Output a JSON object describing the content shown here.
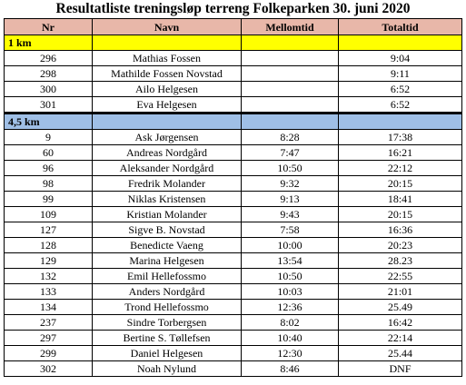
{
  "title": "Resultatliste treningsløp terreng Folkeparken 30. juni 2020",
  "columns": [
    "Nr",
    "Navn",
    "Mellomtid",
    "Totaltid"
  ],
  "sections": [
    {
      "label": "1 km",
      "rows": [
        {
          "nr": "296",
          "navn": "Mathias Fossen",
          "mellomtid": "",
          "totaltid": "9:04"
        },
        {
          "nr": "298",
          "navn": "Mathilde Fossen Novstad",
          "mellomtid": "",
          "totaltid": "9:11"
        },
        {
          "nr": "300",
          "navn": "Ailo Helgesen",
          "mellomtid": "",
          "totaltid": "6:52"
        },
        {
          "nr": "301",
          "navn": "Eva Helgesen",
          "mellomtid": "",
          "totaltid": "6:52"
        }
      ]
    },
    {
      "label": "4,5 km",
      "rows": [
        {
          "nr": "9",
          "navn": "Ask Jørgensen",
          "mellomtid": "8:28",
          "totaltid": "17:38"
        },
        {
          "nr": "60",
          "navn": "Andreas Nordgård",
          "mellomtid": "7:47",
          "totaltid": "16:21"
        },
        {
          "nr": "96",
          "navn": "Aleksander Nordgård",
          "mellomtid": "10:50",
          "totaltid": "22:12"
        },
        {
          "nr": "98",
          "navn": "Fredrik Molander",
          "mellomtid": "9:32",
          "totaltid": "20:15"
        },
        {
          "nr": "99",
          "navn": "Niklas Kristensen",
          "mellomtid": "9:13",
          "totaltid": "18:41"
        },
        {
          "nr": "109",
          "navn": "Kristian Molander",
          "mellomtid": "9:43",
          "totaltid": "20:15"
        },
        {
          "nr": "127",
          "navn": "Sigve B. Novstad",
          "mellomtid": "7:58",
          "totaltid": "16:36"
        },
        {
          "nr": "128",
          "navn": "Benedicte Vaeng",
          "mellomtid": "10:00",
          "totaltid": "20:23"
        },
        {
          "nr": "129",
          "navn": "Marina Helgesen",
          "mellomtid": "13:54",
          "totaltid": "28.23"
        },
        {
          "nr": "132",
          "navn": "Emil Hellefossmo",
          "mellomtid": "10:50",
          "totaltid": "22:55"
        },
        {
          "nr": "133",
          "navn": "Anders Nordgård",
          "mellomtid": "10:03",
          "totaltid": "21:01"
        },
        {
          "nr": "134",
          "navn": "Trond Hellefossmo",
          "mellomtid": "12:36",
          "totaltid": "25.49"
        },
        {
          "nr": "237",
          "navn": "Sindre Torbergsen",
          "mellomtid": "8:02",
          "totaltid": "16:42"
        },
        {
          "nr": "297",
          "navn": "Bertine S. Tøllefsen",
          "mellomtid": "10:40",
          "totaltid": "22:14"
        },
        {
          "nr": "299",
          "navn": "Daniel Helgesen",
          "mellomtid": "12:30",
          "totaltid": "25.44"
        },
        {
          "nr": "302",
          "navn": "Noah Nylund",
          "mellomtid": "8:46",
          "totaltid": "DNF"
        }
      ]
    }
  ],
  "colors": {
    "header": "#e8b7a9",
    "section_1km": "#ffff00",
    "section_45km": "#9fbfe6"
  }
}
